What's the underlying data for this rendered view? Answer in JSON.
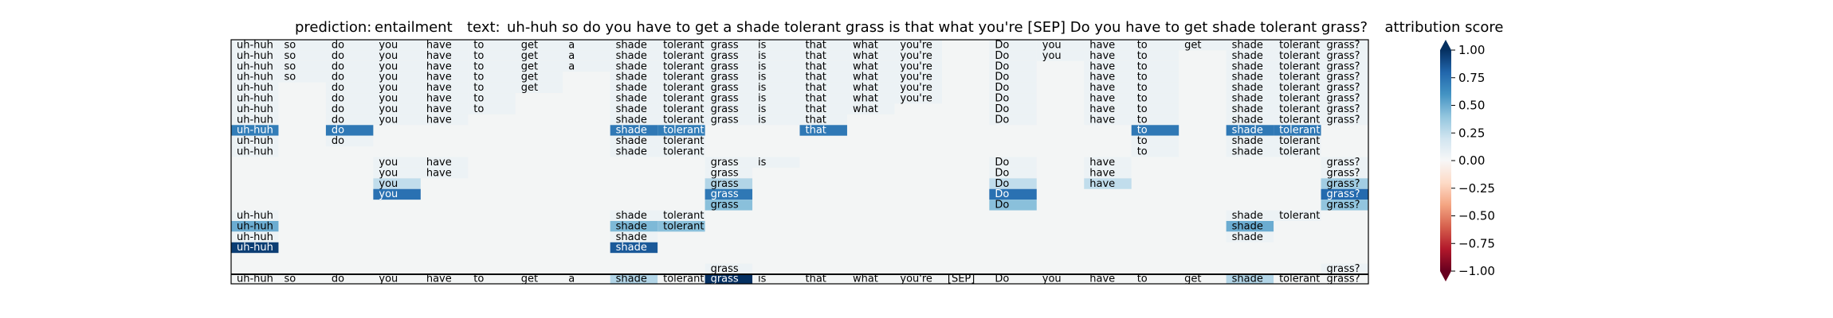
{
  "chart_data": {
    "type": "heatmap",
    "prediction_label": "prediction:",
    "prediction": "entailment",
    "text_label": "text:",
    "text": "uh-huh so do you have to get a shade tolerant grass is that what you're [SEP] Do you have to get shade tolerant grass?",
    "colorbar_title": "attribution score",
    "colorbar_ticks": [
      "1.00",
      "0.75",
      "0.50",
      "0.25",
      "0.00",
      "−0.25",
      "−0.50",
      "−0.75",
      "−1.00"
    ],
    "colorbar_range": [
      -1.0,
      1.0
    ],
    "colormap": [
      "#67001f",
      "#b2182b",
      "#d6604d",
      "#f4a582",
      "#fddbc7",
      "#f7f7f7",
      "#d1e5f0",
      "#92c5de",
      "#4393c3",
      "#2166ac",
      "#053061"
    ],
    "background_color": "#f3f5f5",
    "tokens": [
      "uh-huh",
      "so",
      "do",
      "you",
      "have",
      "to",
      "get",
      "a",
      "shade",
      "tolerant",
      "grass",
      "is",
      "that",
      "what",
      "you're",
      "[SEP]",
      "Do",
      "you",
      "have",
      "to",
      "get",
      "shade",
      "tolerant",
      "grass?"
    ],
    "baseline_scores": {
      "shade": 0.3,
      "grass": 1.0
    },
    "rows": [
      {
        "cells": [
          0,
          1,
          2,
          3,
          4,
          5,
          6,
          7,
          8,
          9,
          10,
          11,
          12,
          13,
          14,
          16,
          17,
          18,
          19,
          20,
          21,
          22,
          23
        ],
        "scores": {}
      },
      {
        "cells": [
          0,
          1,
          2,
          3,
          4,
          5,
          6,
          7,
          8,
          9,
          10,
          11,
          12,
          13,
          14,
          16,
          17,
          18,
          19,
          21,
          22,
          23
        ],
        "scores": {}
      },
      {
        "cells": [
          0,
          1,
          2,
          3,
          4,
          5,
          6,
          7,
          8,
          9,
          10,
          11,
          12,
          13,
          14,
          16,
          18,
          19,
          21,
          22,
          23
        ],
        "scores": {}
      },
      {
        "cells": [
          0,
          1,
          2,
          3,
          4,
          5,
          6,
          8,
          9,
          10,
          11,
          12,
          13,
          14,
          16,
          18,
          19,
          21,
          22,
          23
        ],
        "scores": {}
      },
      {
        "cells": [
          0,
          2,
          3,
          4,
          5,
          6,
          8,
          9,
          10,
          11,
          12,
          13,
          14,
          16,
          18,
          19,
          21,
          22,
          23
        ],
        "scores": {}
      },
      {
        "cells": [
          0,
          2,
          3,
          4,
          5,
          8,
          9,
          10,
          11,
          12,
          13,
          14,
          16,
          18,
          19,
          21,
          22,
          23
        ],
        "scores": {}
      },
      {
        "cells": [
          0,
          2,
          3,
          4,
          5,
          8,
          9,
          10,
          11,
          12,
          13,
          16,
          18,
          19,
          21,
          22,
          23
        ],
        "scores": {}
      },
      {
        "cells": [
          0,
          2,
          3,
          4,
          8,
          9,
          10,
          11,
          12,
          16,
          18,
          19,
          21,
          22,
          23
        ],
        "scores": {}
      },
      {
        "cells": [
          0,
          2,
          8,
          9,
          12,
          19,
          21,
          22
        ],
        "scores": {
          "0": 0.7,
          "2": 0.72,
          "8": 0.72,
          "9": 0.7,
          "12": 0.72,
          "19": 0.72,
          "21": 0.72,
          "22": 0.72
        }
      },
      {
        "cells": [
          0,
          2,
          8,
          9,
          19,
          21,
          22
        ],
        "scores": {}
      },
      {
        "cells": [
          0,
          8,
          9,
          19,
          21,
          22
        ],
        "scores": {}
      },
      {
        "cells": [
          3,
          4,
          10,
          11,
          16,
          18,
          23
        ],
        "scores": {}
      },
      {
        "cells": [
          3,
          4,
          10,
          16,
          18,
          23
        ],
        "scores": {}
      },
      {
        "cells": [
          3,
          10,
          16,
          18,
          23
        ],
        "scores": {
          "3": 0.25,
          "10": 0.3,
          "16": 0.25,
          "18": 0.25,
          "23": 0.35
        }
      },
      {
        "cells": [
          3,
          10,
          16,
          23
        ],
        "scores": {
          "3": 0.75,
          "10": 0.72,
          "16": 0.75,
          "23": 0.78
        }
      },
      {
        "cells": [
          10,
          16,
          23
        ],
        "scores": {
          "10": 0.42,
          "16": 0.42,
          "23": 0.4
        }
      },
      {
        "cells": [
          0,
          8,
          9,
          21,
          22
        ],
        "scores": {}
      },
      {
        "cells": [
          0,
          8,
          9,
          21
        ],
        "scores": {
          "0": 0.5,
          "8": 0.45,
          "9": 0.42,
          "21": 0.5
        }
      },
      {
        "cells": [
          0,
          8,
          21
        ],
        "scores": {}
      },
      {
        "cells": [
          0,
          8
        ],
        "scores": {
          "0": 0.95,
          "8": 0.85
        }
      },
      {
        "cells": [],
        "scores": {}
      },
      {
        "cells": [
          10,
          23
        ],
        "scores": {}
      }
    ]
  }
}
